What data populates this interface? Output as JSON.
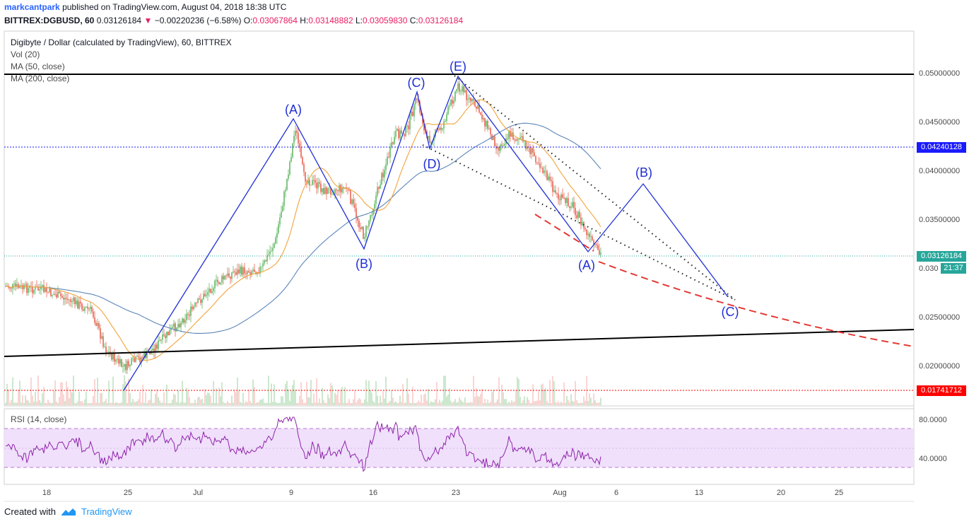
{
  "header": {
    "user": "markcantpark",
    "published": "published on TradingView.com, August 04, 2018 18:38 UTC",
    "symbol": "BITTREX:DGBUSD, 60",
    "price": "0.03126184",
    "change": "−0.00220236 (−6.58%)",
    "o_label": "O:",
    "o_val": "0.03067864",
    "h_label": "H:",
    "h_val": "0.03148882",
    "l_label": "L:",
    "l_val": "0.03059830",
    "c_label": "C:",
    "c_val": "0.03126184"
  },
  "legend": {
    "title": "Digibyte / Dollar (calculated by TradingView), 60, BITTREX",
    "vol": "Vol (20)",
    "ma50": "MA (50, close)",
    "ma200": "MA (200, close)",
    "rsi": "RSI (14, close)"
  },
  "price_axis": {
    "ticks": [
      "0.05000000",
      "0.04500000",
      "0.04000000",
      "0.03500000",
      "0.02500000",
      "0.02000000"
    ],
    "tick_values": [
      0.05,
      0.045,
      0.04,
      0.035,
      0.025,
      0.02
    ],
    "partial_tick": "0.030",
    "badges": {
      "level_blue": "0.04240128",
      "last_price": "0.03126184",
      "countdown": "21:37",
      "level_red": "0.01741712"
    }
  },
  "rsi_axis": {
    "ticks": [
      "80.0000",
      "40.0000"
    ],
    "tick_values": [
      80,
      40
    ]
  },
  "time_axis": {
    "labels": [
      "18",
      "25",
      "Jul",
      "9",
      "16",
      "23",
      "Aug",
      "6",
      "13",
      "20",
      "25"
    ]
  },
  "wave_labels": {
    "A1": "(A)",
    "B1": "(B)",
    "C1": "(C)",
    "D1": "(D)",
    "E1": "(E)",
    "A2": "(A)",
    "B2": "(B)",
    "C2": "(C)"
  },
  "colors": {
    "wave": "#1f2fd6",
    "ma50": "#f3a33b",
    "ma200": "#5b86b8",
    "up": "#4caf50",
    "down": "#e74c3c",
    "rsi": "#8e24aa",
    "rsi_band": "#f0e0fb",
    "level_blue": "#1a1aff",
    "level_red": "#ff0000",
    "last_price": "#26a69a"
  },
  "footer": {
    "created": "Created with",
    "brand": "TradingView"
  }
}
